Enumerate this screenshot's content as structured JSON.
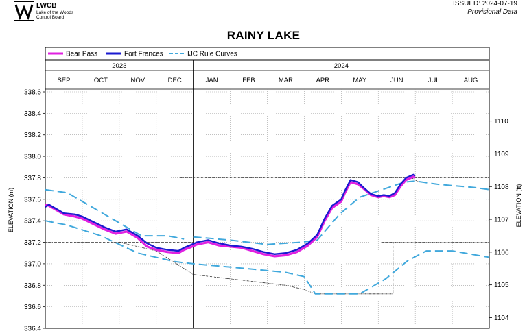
{
  "header": {
    "logo_abbr": "LWCB",
    "logo_name_line1": "Lake of the Woods",
    "logo_name_line2": "Control Board",
    "issued": "ISSUED: 2024-07-19",
    "provisional": "Provisional Data"
  },
  "chart_data": {
    "type": "line",
    "title": "RAINY LAKE",
    "ylabel": "ELEVATION (m)",
    "ylabel_right": "ELEVATION (ft)",
    "ylim": [
      336.4,
      338.6
    ],
    "yticks": [
      "338.6",
      "338.4",
      "338.2",
      "338.0",
      "337.8",
      "337.6",
      "337.4",
      "337.2",
      "337.0",
      "336.8",
      "336.6",
      "336.4"
    ],
    "yticks_right": [
      "1110",
      "1109",
      "1108",
      "1107",
      "1106",
      "1105",
      "1104"
    ],
    "grid": true,
    "legend_position": "top",
    "years": [
      {
        "label": "2023",
        "start": 0,
        "end": 4
      },
      {
        "label": "2024",
        "start": 4,
        "end": 12
      }
    ],
    "months": [
      "SEP",
      "OCT",
      "NOV",
      "DEC",
      "JAN",
      "FEB",
      "MAR",
      "APR",
      "MAY",
      "JUN",
      "JUL",
      "AUG"
    ],
    "colors": {
      "bear_pass": "#e020e0",
      "fort_frances": "#1a1ad0",
      "rule_curves": "#40a8dc",
      "band": "#333333"
    },
    "series": [
      {
        "name": "Bear Pass",
        "x": [
          0,
          0.1,
          0.3,
          0.5,
          0.8,
          1.0,
          1.3,
          1.6,
          1.9,
          2.2,
          2.5,
          2.75,
          3.0,
          3.3,
          3.6,
          3.75,
          3.9,
          4.1,
          4.4,
          4.7,
          5.0,
          5.3,
          5.6,
          5.9,
          6.2,
          6.5,
          6.8,
          7.1,
          7.35,
          7.55,
          7.75,
          8.0,
          8.1,
          8.25,
          8.45,
          8.6,
          8.8,
          9.0,
          9.15,
          9.3,
          9.45,
          9.6,
          9.75,
          9.95,
          10.0
        ],
        "values": [
          337.55,
          337.54,
          337.5,
          337.46,
          337.44,
          337.42,
          337.37,
          337.32,
          337.28,
          337.3,
          337.24,
          337.16,
          337.13,
          337.11,
          337.1,
          337.13,
          337.15,
          337.18,
          337.2,
          337.17,
          337.16,
          337.15,
          337.12,
          337.09,
          337.07,
          337.08,
          337.11,
          337.17,
          337.25,
          337.4,
          337.52,
          337.58,
          337.66,
          337.76,
          337.74,
          337.7,
          337.64,
          337.62,
          337.63,
          337.62,
          337.64,
          337.72,
          337.78,
          337.81,
          337.8
        ]
      },
      {
        "name": "Fort Frances",
        "x": [
          0,
          0.1,
          0.3,
          0.5,
          0.8,
          1.0,
          1.3,
          1.6,
          1.9,
          2.2,
          2.5,
          2.75,
          3.0,
          3.3,
          3.6,
          3.75,
          3.9,
          4.1,
          4.4,
          4.7,
          5.0,
          5.3,
          5.6,
          5.9,
          6.2,
          6.5,
          6.8,
          7.1,
          7.35,
          7.55,
          7.75,
          8.0,
          8.1,
          8.25,
          8.45,
          8.6,
          8.8,
          9.0,
          9.15,
          9.3,
          9.45,
          9.6,
          9.75,
          9.95,
          10.0
        ],
        "values": [
          337.53,
          337.55,
          337.51,
          337.47,
          337.46,
          337.44,
          337.39,
          337.34,
          337.3,
          337.32,
          337.26,
          337.19,
          337.15,
          337.13,
          337.12,
          337.15,
          337.17,
          337.2,
          337.22,
          337.19,
          337.17,
          337.16,
          337.14,
          337.11,
          337.09,
          337.1,
          337.13,
          337.19,
          337.27,
          337.42,
          337.54,
          337.6,
          337.68,
          337.78,
          337.76,
          337.71,
          337.65,
          337.63,
          337.64,
          337.63,
          337.66,
          337.74,
          337.8,
          337.83,
          337.82
        ]
      },
      {
        "name": "IJC Rule Curves",
        "segments": [
          {
            "x": [
              0,
              0.6,
              1.5,
              2.6,
              3.3,
              3.75
            ],
            "values": [
              337.69,
              337.66,
              337.48,
              337.26,
              337.26,
              337.23
            ]
          },
          {
            "x": [
              4.0,
              5.0,
              6.0,
              6.9,
              7.35,
              7.95,
              8.5,
              9.2,
              9.7,
              10.0,
              10.6,
              11.6,
              12.0
            ],
            "values": [
              337.25,
              337.22,
              337.18,
              337.2,
              337.22,
              337.46,
              337.62,
              337.7,
              337.76,
              337.77,
              337.74,
              337.71,
              337.69
            ]
          },
          {
            "x": [
              0,
              0.6,
              1.5,
              2.5,
              3.5,
              4.0,
              5.3,
              6.5,
              7.0,
              7.3,
              7.6,
              8.5,
              9.2,
              9.8,
              10.3,
              11.0,
              12.0
            ],
            "values": [
              337.4,
              337.36,
              337.26,
              337.1,
              337.02,
              337.0,
              336.96,
              336.92,
              336.88,
              336.72,
              336.72,
              336.72,
              336.86,
              337.03,
              337.12,
              337.12,
              337.06
            ]
          }
        ]
      }
    ],
    "band_lines": [
      {
        "x": [
          3.65,
          12.0
        ],
        "values": [
          337.8,
          337.8
        ]
      },
      {
        "x": [
          0,
          4.0
        ],
        "values": [
          337.2,
          337.2
        ]
      },
      {
        "x": [
          9.1,
          12.0
        ],
        "values": [
          337.2,
          337.2
        ]
      },
      {
        "x": [
          2.0,
          3.0,
          4.0,
          5.5,
          6.5,
          7.0,
          7.3,
          7.6,
          8.5,
          9.4,
          9.4
        ],
        "values": [
          337.2,
          337.12,
          336.9,
          336.84,
          336.8,
          336.76,
          336.72,
          336.72,
          336.72,
          336.72,
          337.2
        ]
      },
      {
        "x": [
          9.9,
          10.1
        ],
        "values": [
          337.8,
          337.76
        ]
      }
    ]
  }
}
